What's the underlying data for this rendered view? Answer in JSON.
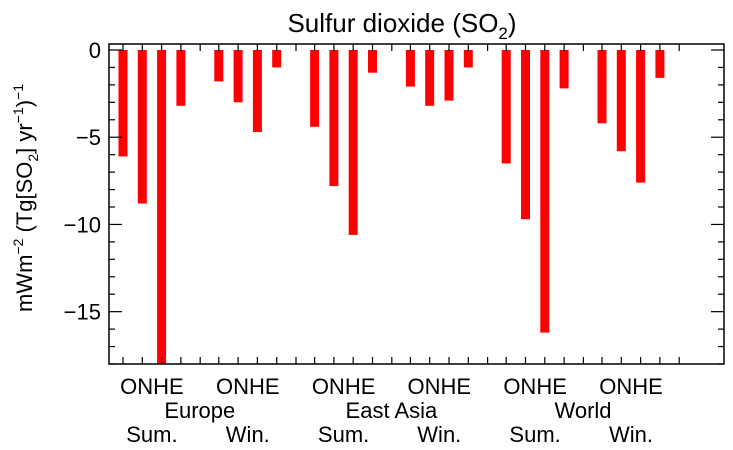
{
  "chart_data": {
    "type": "bar",
    "title": "Sulfur dioxide (SO",
    "title_sub": "2",
    "title_end": ")",
    "ylabel_parts": {
      "unit": "mWm",
      "exp1": "−2",
      "mid": " (Tg[SO",
      "sub": "2",
      "mid2": "] yr",
      "exp2": "−1",
      "close": ")",
      "exp3": "−1"
    },
    "ylim": [
      -18,
      0
    ],
    "yticks": [
      0,
      -5,
      -10,
      -15
    ],
    "ytick_labels": [
      "0",
      "−5",
      "−10",
      "−15"
    ],
    "bar_color": "#ff0000",
    "groups": [
      {
        "tick_label": "ONHE",
        "region": "Europe",
        "season": "Sum.",
        "values": [
          -6.1,
          -8.8,
          -18.0,
          -3.2
        ]
      },
      {
        "tick_label": "ONHE",
        "region": "",
        "season": "Win.",
        "values": [
          -1.8,
          -3.0,
          -4.7,
          -1.0
        ]
      },
      {
        "tick_label": "ONHE",
        "region": "East Asia",
        "season": "Sum.",
        "values": [
          -4.4,
          -7.8,
          -10.6,
          -1.3
        ]
      },
      {
        "tick_label": "ONHE",
        "region": "",
        "season": "Win.",
        "values": [
          -2.1,
          -3.2,
          -2.9,
          -1.0
        ]
      },
      {
        "tick_label": "ONHE",
        "region": "World",
        "season": "Sum.",
        "values": [
          -6.5,
          -9.7,
          -16.2,
          -2.2
        ]
      },
      {
        "tick_label": "ONHE",
        "region": "",
        "season": "Win.",
        "values": [
          -4.2,
          -5.8,
          -7.6,
          -1.6
        ]
      }
    ]
  }
}
